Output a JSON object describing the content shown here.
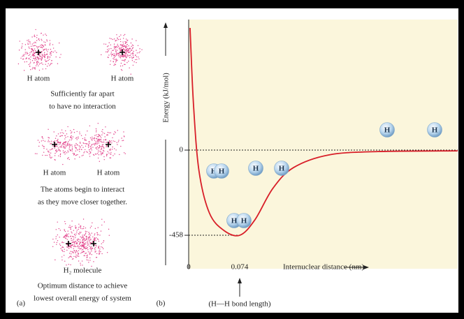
{
  "chart_data": {
    "type": "line",
    "y_label": "Energy (kJ/mol)",
    "x_label": "Internuclear distance (nm)",
    "annotation": "(H—H bond length)",
    "panel_label": "(b)",
    "sphere_label": "H",
    "color": "#d81e28",
    "background": "#fbf6dc",
    "x": [
      0.002,
      0.007,
      0.015,
      0.03,
      0.051,
      0.074,
      0.096,
      0.122,
      0.152,
      0.203,
      0.274,
      0.39
    ],
    "values": [
      657,
      244,
      -113,
      -338,
      -432,
      -458,
      -375,
      -206,
      -94,
      -26,
      -8,
      -4
    ],
    "xlim": [
      0,
      0.39
    ],
    "ylim": [
      -638,
      702
    ],
    "xticks": [
      0,
      0.074
    ],
    "yticks": [
      0,
      -458
    ]
  },
  "panel_a": {
    "label": "(a)",
    "stage1": {
      "atom_left": "H atom",
      "atom_right": "H atom",
      "lines": [
        "Sufficiently far apart",
        "to have no interaction"
      ]
    },
    "stage2": {
      "atom_left": "H atom",
      "atom_right": "H atom",
      "lines": [
        "The atoms begin to interact",
        "as they move closer together."
      ]
    },
    "stage3": {
      "molecule": "H₂ molecule",
      "lines": [
        "Optimum distance to achieve",
        "lowest overall energy of system"
      ]
    }
  }
}
